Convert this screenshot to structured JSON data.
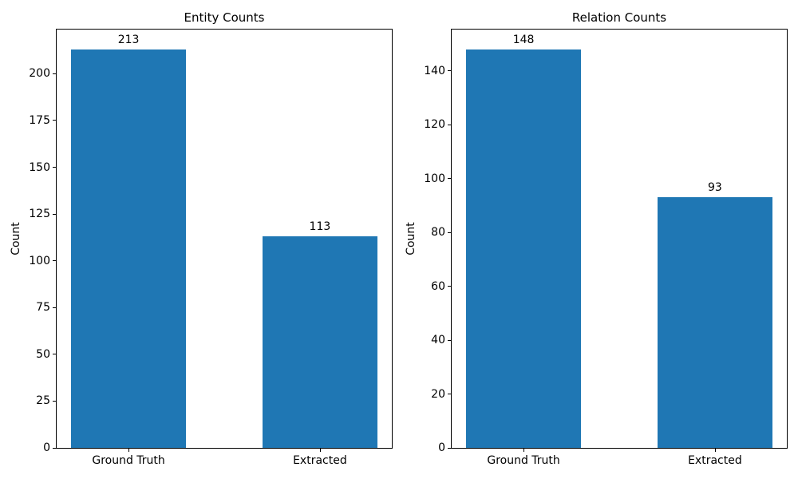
{
  "figure": {
    "background_color": "#ffffff",
    "text_color": "#000000"
  },
  "chart_data": [
    {
      "type": "bar",
      "title": "Entity Counts",
      "xlabel": "",
      "ylabel": "Count",
      "categories": [
        "Ground Truth",
        "Extracted"
      ],
      "values": [
        213,
        113
      ],
      "bar_labels": [
        "213",
        "113"
      ],
      "yticks": [
        0,
        25,
        50,
        75,
        100,
        125,
        150,
        175,
        200
      ],
      "ylim": [
        0,
        223.65
      ],
      "bar_color": "#1f77b4",
      "grid": false,
      "legend_position": "none"
    },
    {
      "type": "bar",
      "title": "Relation Counts",
      "xlabel": "",
      "ylabel": "Count",
      "categories": [
        "Ground Truth",
        "Extracted"
      ],
      "values": [
        148,
        93
      ],
      "bar_labels": [
        "148",
        "93"
      ],
      "yticks": [
        0,
        20,
        40,
        60,
        80,
        100,
        120,
        140
      ],
      "ylim": [
        0,
        155.4
      ],
      "bar_color": "#1f77b4",
      "grid": false,
      "legend_position": "none"
    }
  ]
}
